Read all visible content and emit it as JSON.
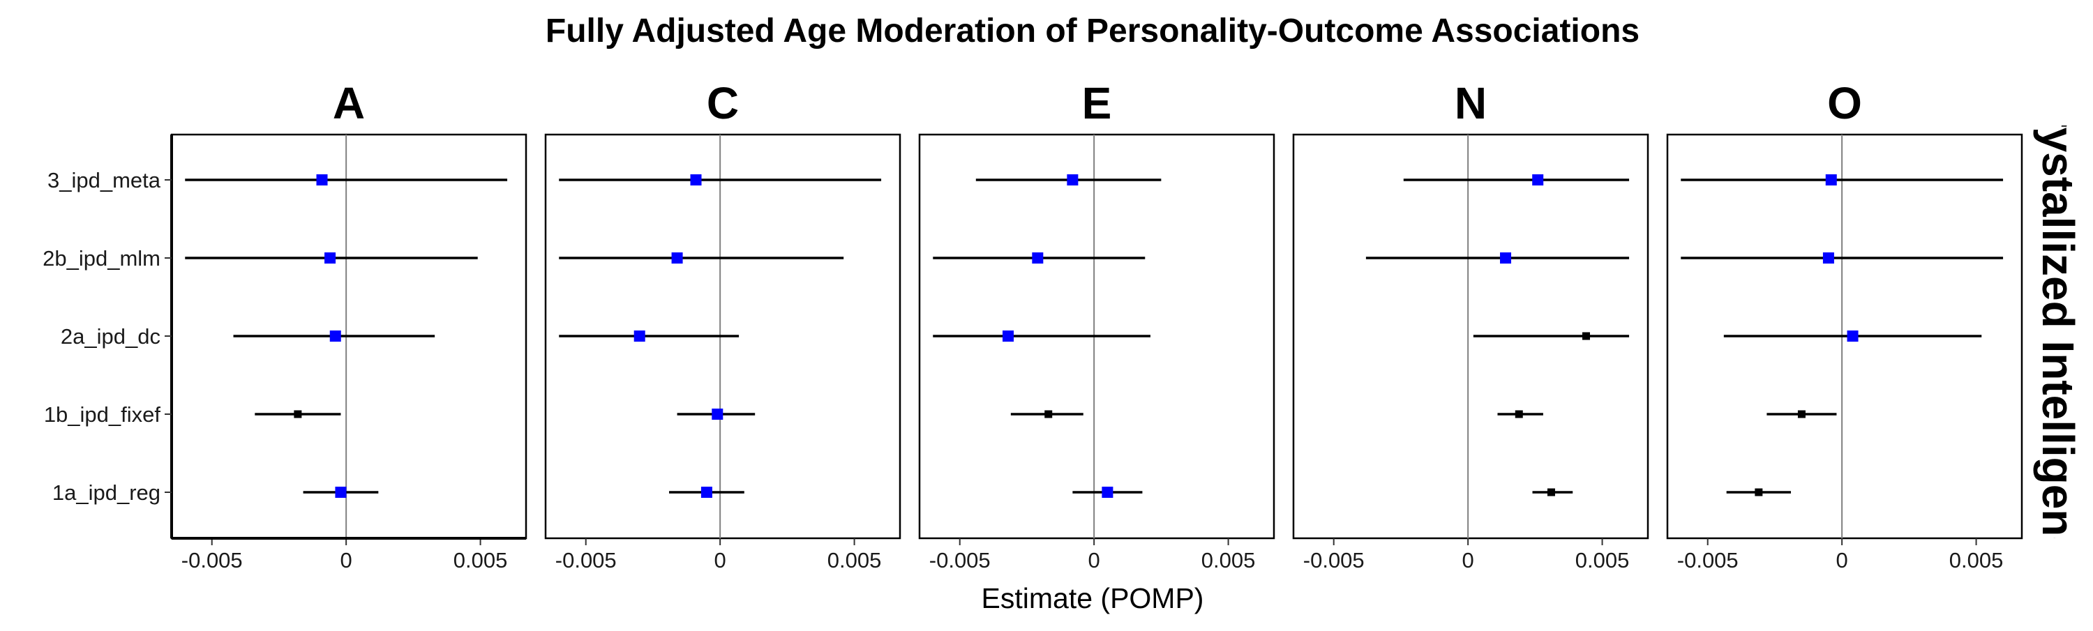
{
  "chart_data": {
    "type": "forest",
    "title": "Fully Adjusted Age Moderation of Personality-Outcome Associations",
    "xlabel": "Estimate (POMP)",
    "ylabel": "",
    "strip_label": "Crystallized Intelligence",
    "xlim": [
      -0.0065,
      0.0067
    ],
    "x_ticks": [
      -0.005,
      0,
      0.005
    ],
    "x_tick_labels": [
      "-0.005",
      "0",
      "0.005"
    ],
    "reference_line": 0,
    "categories": [
      "3_ipd_meta",
      "2b_ipd_mlm",
      "2a_ipd_dc",
      "1b_ipd_fixef",
      "1a_ipd_reg"
    ],
    "colors": {
      "significant": "#000000",
      "nonsignificant": "#0000ff",
      "interval": "#000000",
      "zero_line": "#808080"
    },
    "panels": [
      {
        "name": "A",
        "points": [
          {
            "model": "3_ipd_meta",
            "estimate": -0.0009,
            "lower": -0.006,
            "upper": 0.006,
            "color": "#0000ff"
          },
          {
            "model": "2b_ipd_mlm",
            "estimate": -0.0006,
            "lower": -0.006,
            "upper": 0.0049,
            "color": "#0000ff"
          },
          {
            "model": "2a_ipd_dc",
            "estimate": -0.0004,
            "lower": -0.0042,
            "upper": 0.0033,
            "color": "#0000ff"
          },
          {
            "model": "1b_ipd_fixef",
            "estimate": -0.0018,
            "lower": -0.0034,
            "upper": -0.0002,
            "color": "#000000"
          },
          {
            "model": "1a_ipd_reg",
            "estimate": -0.0002,
            "lower": -0.0016,
            "upper": 0.0012,
            "color": "#0000ff"
          }
        ]
      },
      {
        "name": "C",
        "points": [
          {
            "model": "3_ipd_meta",
            "estimate": -0.0009,
            "lower": -0.006,
            "upper": 0.006,
            "color": "#0000ff"
          },
          {
            "model": "2b_ipd_mlm",
            "estimate": -0.0016,
            "lower": -0.006,
            "upper": 0.0046,
            "color": "#0000ff"
          },
          {
            "model": "2a_ipd_dc",
            "estimate": -0.003,
            "lower": -0.006,
            "upper": 0.0007,
            "color": "#0000ff"
          },
          {
            "model": "1b_ipd_fixef",
            "estimate": -0.0001,
            "lower": -0.0016,
            "upper": 0.0013,
            "color": "#0000ff"
          },
          {
            "model": "1a_ipd_reg",
            "estimate": -0.0005,
            "lower": -0.0019,
            "upper": 0.0009,
            "color": "#0000ff"
          }
        ]
      },
      {
        "name": "E",
        "points": [
          {
            "model": "3_ipd_meta",
            "estimate": -0.0008,
            "lower": -0.0044,
            "upper": 0.0025,
            "color": "#0000ff"
          },
          {
            "model": "2b_ipd_mlm",
            "estimate": -0.0021,
            "lower": -0.006,
            "upper": 0.0019,
            "color": "#0000ff"
          },
          {
            "model": "2a_ipd_dc",
            "estimate": -0.0032,
            "lower": -0.006,
            "upper": 0.0021,
            "color": "#0000ff"
          },
          {
            "model": "1b_ipd_fixef",
            "estimate": -0.0017,
            "lower": -0.0031,
            "upper": -0.0004,
            "color": "#000000"
          },
          {
            "model": "1a_ipd_reg",
            "estimate": 0.0005,
            "lower": -0.0008,
            "upper": 0.0018,
            "color": "#0000ff"
          }
        ]
      },
      {
        "name": "N",
        "points": [
          {
            "model": "3_ipd_meta",
            "estimate": 0.0026,
            "lower": -0.0024,
            "upper": 0.006,
            "color": "#0000ff"
          },
          {
            "model": "2b_ipd_mlm",
            "estimate": 0.0014,
            "lower": -0.0038,
            "upper": 0.006,
            "color": "#0000ff"
          },
          {
            "model": "2a_ipd_dc",
            "estimate": 0.0044,
            "lower": 0.0002,
            "upper": 0.006,
            "color": "#000000"
          },
          {
            "model": "1b_ipd_fixef",
            "estimate": 0.0019,
            "lower": 0.0011,
            "upper": 0.0028,
            "color": "#000000"
          },
          {
            "model": "1a_ipd_reg",
            "estimate": 0.0031,
            "lower": 0.0024,
            "upper": 0.0039,
            "color": "#000000"
          }
        ]
      },
      {
        "name": "O",
        "points": [
          {
            "model": "3_ipd_meta",
            "estimate": -0.0004,
            "lower": -0.006,
            "upper": 0.006,
            "color": "#0000ff"
          },
          {
            "model": "2b_ipd_mlm",
            "estimate": -0.0005,
            "lower": -0.006,
            "upper": 0.006,
            "color": "#0000ff"
          },
          {
            "model": "2a_ipd_dc",
            "estimate": 0.0004,
            "lower": -0.0044,
            "upper": 0.0052,
            "color": "#0000ff"
          },
          {
            "model": "1b_ipd_fixef",
            "estimate": -0.0015,
            "lower": -0.0028,
            "upper": -0.0002,
            "color": "#000000"
          },
          {
            "model": "1a_ipd_reg",
            "estimate": -0.0031,
            "lower": -0.0043,
            "upper": -0.0019,
            "color": "#000000"
          }
        ]
      }
    ]
  }
}
